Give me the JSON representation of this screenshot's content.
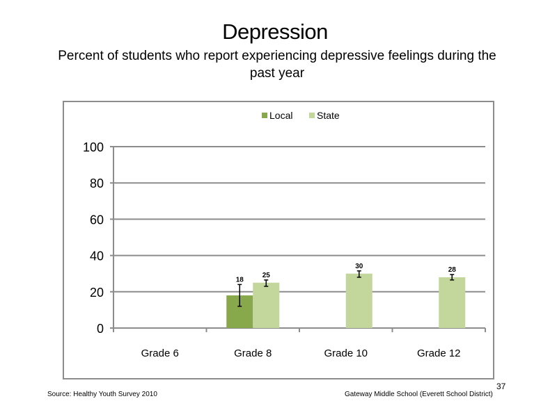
{
  "slide": {
    "title": "Depression",
    "subtitle": "Percent of students who report experiencing depressive feelings during the past year",
    "source": "Source: Healthy Youth Survey 2010",
    "school": "Gateway Middle School (Everett School District)",
    "page_number": "37"
  },
  "chart_data": {
    "type": "bar",
    "categories": [
      "Grade 6",
      "Grade 8",
      "Grade 10",
      "Grade 12"
    ],
    "series": [
      {
        "name": "Local",
        "color": "#88a84c",
        "values": [
          null,
          18,
          null,
          null
        ],
        "labels": [
          "",
          "18",
          "",
          ""
        ],
        "error": [
          null,
          [
            12,
            24
          ],
          null,
          null
        ]
      },
      {
        "name": "State",
        "color": "#c3d69b",
        "values": [
          null,
          25,
          30,
          28
        ],
        "labels": [
          "",
          "25",
          "30",
          "28"
        ],
        "error": [
          null,
          [
            23,
            26.5
          ],
          [
            28,
            31.5
          ],
          [
            26.5,
            29.5
          ]
        ]
      }
    ],
    "ylim": [
      0,
      100
    ],
    "yticks": [
      0,
      20,
      40,
      60,
      80,
      100
    ],
    "grid": true,
    "legend_position": "top-center"
  }
}
